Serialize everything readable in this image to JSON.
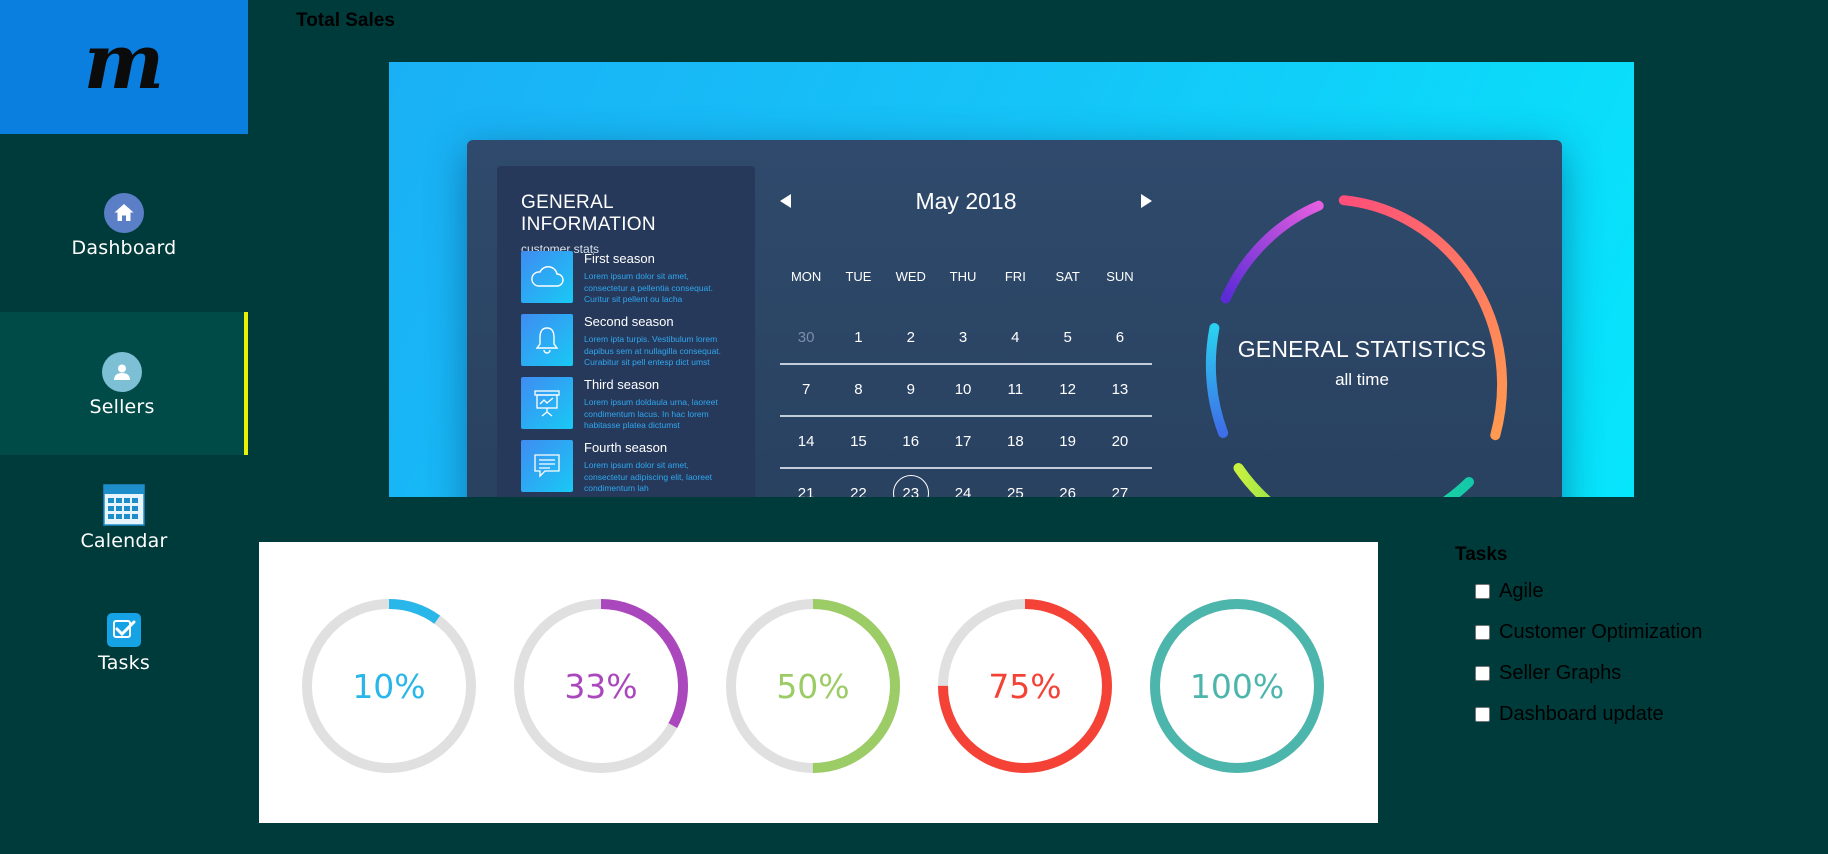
{
  "app": {
    "logo_text": "m"
  },
  "sidebar": {
    "items": [
      {
        "label": "Dashboard",
        "icon": "home-icon",
        "active": false
      },
      {
        "label": "Sellers",
        "icon": "user-icon",
        "active": true
      },
      {
        "label": "Calendar",
        "icon": "calendar-icon",
        "active": false
      },
      {
        "label": "Tasks",
        "icon": "checkbox-icon",
        "active": false
      }
    ]
  },
  "header": {
    "title": "Total Sales"
  },
  "banner": {
    "general_info": {
      "title": "GENERAL INFORMATION",
      "subtitle": "customer stats",
      "seasons": [
        {
          "name": "First season",
          "icon": "cloud-icon",
          "desc": [
            "Lorem ipsum dolor sit amet,",
            "consectetur a pellentia consequat.",
            "Curitur sit pellent ou lacha"
          ]
        },
        {
          "name": "Second season",
          "icon": "bell-icon",
          "desc": [
            "Lorem ipta turpis. Vestibulum lorem",
            "dapibus sem at nullagilla consequat.",
            "Curabitur sit pell entesp dict umst"
          ]
        },
        {
          "name": "Third season",
          "icon": "presentation-icon",
          "desc": [
            "Lorem ipsum doldaula urna, laoreet",
            "condimentum lacus. In hac lorem",
            "habitasse platea dictumst"
          ]
        },
        {
          "name": "Fourth season",
          "icon": "chat-icon",
          "desc": [
            "Lorem ipsum dolor sit amet,",
            "consectetur adipiscing elit, laoreet",
            "condimentum lah"
          ]
        }
      ]
    },
    "calendar": {
      "month": "May 2018",
      "weekdays": [
        "MON",
        "TUE",
        "WED",
        "THU",
        "FRI",
        "SAT",
        "SUN"
      ],
      "weeks": [
        [
          "30",
          "1",
          "2",
          "3",
          "4",
          "5",
          "6"
        ],
        [
          "7",
          "8",
          "9",
          "10",
          "11",
          "12",
          "13"
        ],
        [
          "14",
          "15",
          "16",
          "17",
          "18",
          "19",
          "20"
        ],
        [
          "21",
          "22",
          "23",
          "24",
          "25",
          "26",
          "27"
        ]
      ],
      "muted_day": "30",
      "selected_day": "23"
    },
    "stats": {
      "title": "GENERAL STATISTICS",
      "subtitle": "all time"
    }
  },
  "progress": [
    {
      "label": "10%",
      "value": 10,
      "color": "#29b6e8"
    },
    {
      "label": "33%",
      "value": 33,
      "color": "#ab47bc"
    },
    {
      "label": "50%",
      "value": 50,
      "color": "#9ccc65"
    },
    {
      "label": "75%",
      "value": 75,
      "color": "#f44336"
    },
    {
      "label": "100%",
      "value": 100,
      "color": "#4db6ac"
    }
  ],
  "tasks": {
    "title": "Tasks",
    "items": [
      {
        "label": "Agile",
        "checked": false
      },
      {
        "label": "Customer Optimization",
        "checked": false
      },
      {
        "label": "Seller Graphs",
        "checked": false
      },
      {
        "label": "Dashboard update",
        "checked": false
      }
    ]
  }
}
